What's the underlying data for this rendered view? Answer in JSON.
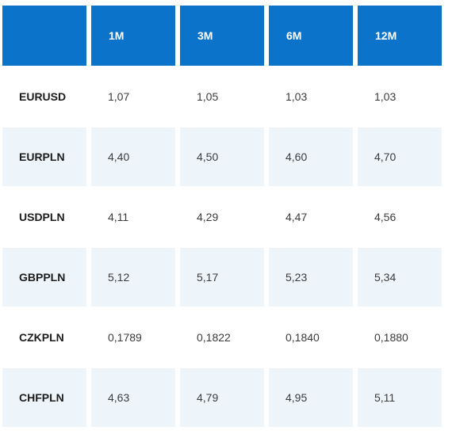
{
  "table": {
    "headers": [
      "",
      "1M",
      "3M",
      "6M",
      "12M"
    ],
    "rows": [
      {
        "pair": "EURUSD",
        "values": [
          "1,07",
          "1,05",
          "1,03",
          "1,03"
        ]
      },
      {
        "pair": "EURPLN",
        "values": [
          "4,40",
          "4,50",
          "4,60",
          "4,70"
        ]
      },
      {
        "pair": "USDPLN",
        "values": [
          "4,11",
          "4,29",
          "4,47",
          "4,56"
        ]
      },
      {
        "pair": "GBPPLN",
        "values": [
          "5,12",
          "5,17",
          "5,23",
          "5,34"
        ]
      },
      {
        "pair": "CZKPLN",
        "values": [
          "0,1789",
          "0,1822",
          "0,1840",
          "0,1880"
        ]
      },
      {
        "pair": "CHFPLN",
        "values": [
          "4,63",
          "4,79",
          "4,95",
          "5,11"
        ]
      }
    ]
  },
  "colors": {
    "header_bg": "#0b73c9",
    "header_text": "#ffffff",
    "stripe_bg": "#eef5fa"
  }
}
